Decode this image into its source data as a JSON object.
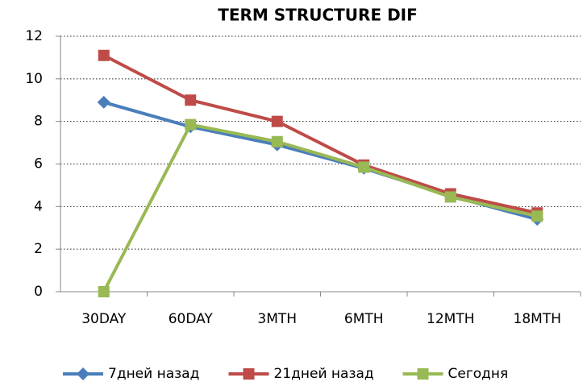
{
  "chart_data": {
    "type": "line",
    "title": "TERM STRUCTURE DIF",
    "categories": [
      "30DAY",
      "60DAY",
      "3MTH",
      "6MTH",
      "12MTH",
      "18MTH"
    ],
    "series": [
      {
        "name": "7дней назад",
        "color": "#4a7ebb",
        "marker": "diamond",
        "values": [
          8.9,
          7.75,
          6.9,
          5.8,
          4.5,
          3.4
        ]
      },
      {
        "name": "21дней назад",
        "color": "#be4b48",
        "marker": "square",
        "values": [
          11.1,
          9.0,
          8.0,
          5.95,
          4.6,
          3.7
        ]
      },
      {
        "name": "Сегодня",
        "color": "#98b954",
        "marker": "square",
        "values": [
          0,
          7.85,
          7.05,
          5.85,
          4.45,
          3.55
        ]
      }
    ],
    "ylim": [
      0,
      12
    ],
    "yticks": [
      0,
      2,
      4,
      6,
      8,
      10,
      12
    ],
    "grid": true,
    "legend": "bottom"
  }
}
